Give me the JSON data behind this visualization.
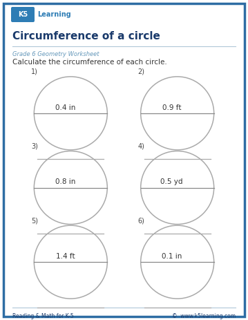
{
  "title": "Circumference of a circle",
  "subtitle": "Grade 6 Geometry Worksheet",
  "instruction": "Calculate the circumference of each circle.",
  "footer_left": "Reading & Math for K-5",
  "footer_right": "©  www.k5learning.com",
  "border_color": "#2e6da4",
  "title_color": "#1a3a6b",
  "subtitle_color": "#6699bb",
  "circles": [
    {
      "number": "1)",
      "label": "0.4 in",
      "col": 0,
      "row": 0
    },
    {
      "number": "2)",
      "label": "0.9 ft",
      "col": 1,
      "row": 0
    },
    {
      "number": "3)",
      "label": "0.8 in",
      "col": 0,
      "row": 1
    },
    {
      "number": "4)",
      "label": "0.5 yd",
      "col": 1,
      "row": 1
    },
    {
      "number": "5)",
      "label": "1.4 ft",
      "col": 0,
      "row": 2
    },
    {
      "number": "6)",
      "label": "0.1 in",
      "col": 1,
      "row": 2
    }
  ],
  "circle_edge_color": "#aaaaaa",
  "diameter_line_color": "#888888",
  "answer_line_color": "#aaaaaa",
  "page_bg": "#ffffff",
  "fig_width": 3.59,
  "fig_height": 4.63,
  "dpi": 100
}
